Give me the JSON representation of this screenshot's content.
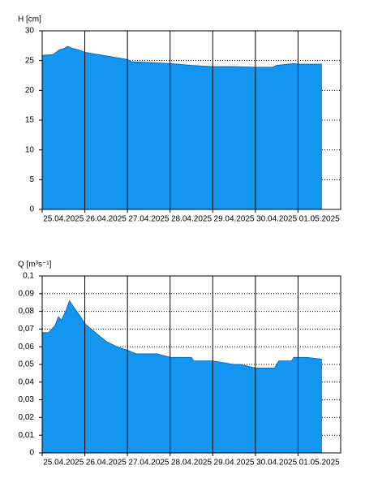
{
  "chart_data": [
    {
      "type": "area",
      "y_label": "H [cm]",
      "color": "#1496f0",
      "x": [
        0,
        0.25,
        0.4,
        0.5,
        0.6,
        0.7,
        0.85,
        1.0,
        1.25,
        1.5,
        1.75,
        2.0,
        2.1,
        2.5,
        3.0,
        3.5,
        4.0,
        4.5,
        5.0,
        5.4,
        5.5,
        5.9,
        6.0,
        6.55
      ],
      "values": [
        25.9,
        26.0,
        26.8,
        27.0,
        27.4,
        27.1,
        26.8,
        26.4,
        26.1,
        25.8,
        25.5,
        25.2,
        24.8,
        24.7,
        24.5,
        24.2,
        24.0,
        24.0,
        23.9,
        23.9,
        24.2,
        24.5,
        24.4,
        24.4
      ],
      "xlim": [
        0,
        7
      ],
      "xticks": [
        {
          "value": 0,
          "label": "25.04.2025"
        },
        {
          "value": 1,
          "label": "26.04.2025"
        },
        {
          "value": 2,
          "label": "27.04.2025"
        },
        {
          "value": 3,
          "label": "28.04.2025"
        },
        {
          "value": 4,
          "label": "29.04.2025"
        },
        {
          "value": 5,
          "label": "30.04.2025"
        },
        {
          "value": 6,
          "label": "01.05.2025"
        }
      ],
      "ylim": [
        0,
        30
      ],
      "yticks": [
        0,
        5,
        10,
        15,
        20,
        25,
        30
      ],
      "grid": true
    },
    {
      "type": "area",
      "y_label": "Q [m³s⁻¹]",
      "color": "#1496f0",
      "x": [
        0,
        0.15,
        0.3,
        0.38,
        0.45,
        0.55,
        0.64,
        0.75,
        0.9,
        1.0,
        1.25,
        1.5,
        1.75,
        2.0,
        2.2,
        2.7,
        2.85,
        3.0,
        3.5,
        3.55,
        4.0,
        4.5,
        4.65,
        5.0,
        5.45,
        5.55,
        5.85,
        5.9,
        6.2,
        6.55
      ],
      "values": [
        0.068,
        0.068,
        0.072,
        0.077,
        0.075,
        0.08,
        0.086,
        0.082,
        0.077,
        0.073,
        0.068,
        0.063,
        0.06,
        0.058,
        0.056,
        0.056,
        0.055,
        0.054,
        0.054,
        0.052,
        0.052,
        0.05,
        0.05,
        0.048,
        0.048,
        0.052,
        0.052,
        0.054,
        0.054,
        0.053
      ],
      "xlim": [
        0,
        7
      ],
      "xticks": [
        {
          "value": 0,
          "label": "25.04.2025"
        },
        {
          "value": 1,
          "label": "26.04.2025"
        },
        {
          "value": 2,
          "label": "27.04.2025"
        },
        {
          "value": 3,
          "label": "28.04.2025"
        },
        {
          "value": 4,
          "label": "29.04.2025"
        },
        {
          "value": 5,
          "label": "30.04.2025"
        },
        {
          "value": 6,
          "label": "01.05.2025"
        }
      ],
      "ylim": [
        0,
        0.1
      ],
      "yticks": [
        0,
        {
          "value": 0.01,
          "label": "0,01"
        },
        {
          "value": 0.02,
          "label": "0,02"
        },
        {
          "value": 0.03,
          "label": "0,03"
        },
        {
          "value": 0.04,
          "label": "0,04"
        },
        {
          "value": 0.05,
          "label": "0,05"
        },
        {
          "value": 0.06,
          "label": "0,06"
        },
        {
          "value": 0.07,
          "label": "0,07"
        },
        {
          "value": 0.08,
          "label": "0,08"
        },
        {
          "value": 0.09,
          "label": "0,09"
        },
        {
          "value": 0.1,
          "label": "0,1"
        }
      ],
      "grid": true
    }
  ]
}
